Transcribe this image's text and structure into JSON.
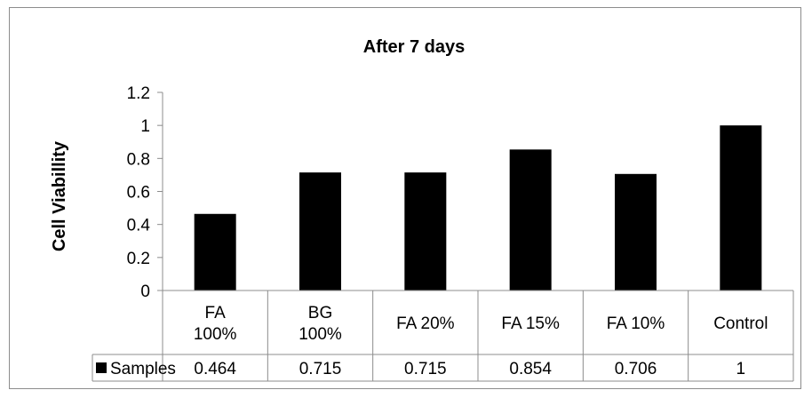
{
  "chart_data": {
    "type": "bar",
    "title": "After 7 days",
    "ylabel": "Cell Viabillity",
    "xlabel": "",
    "ylim": [
      0,
      1.2
    ],
    "yticks": [
      "0",
      "0.2",
      "0.4",
      "0.6",
      "0.8",
      "1",
      "1.2"
    ],
    "categories": [
      [
        "FA",
        "100%"
      ],
      [
        "BG",
        "100%"
      ],
      [
        "FA 20%"
      ],
      [
        "FA 15%"
      ],
      [
        "FA 10%"
      ],
      [
        "Control"
      ]
    ],
    "series": [
      {
        "name": "Samples",
        "values": [
          0.464,
          0.715,
          0.715,
          0.854,
          0.706,
          1
        ],
        "value_labels": [
          "0.464",
          "0.715",
          "0.715",
          "0.854",
          "0.706",
          "1"
        ],
        "color": "#000000"
      }
    ],
    "grid": false,
    "legend": "data-table-left"
  }
}
